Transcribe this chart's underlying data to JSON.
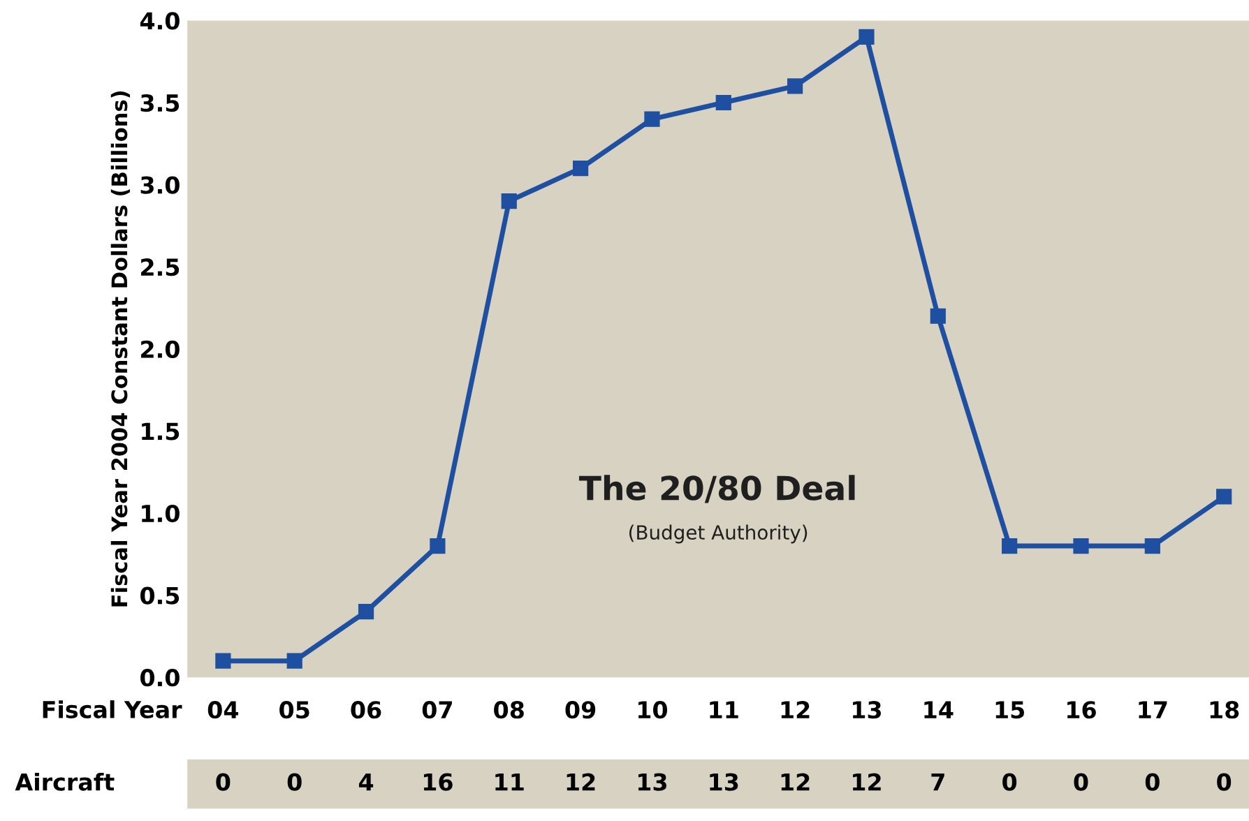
{
  "chart_data": [
    {
      "type": "line",
      "title": "The 20/80 Deal",
      "subtitle": "(Budget Authority)",
      "xlabel": "Fiscal Year",
      "ylabel": "Fiscal Year 2004 Constant Dollars (Billions)",
      "categories": [
        "04",
        "05",
        "06",
        "07",
        "08",
        "09",
        "10",
        "11",
        "12",
        "13",
        "14",
        "15",
        "16",
        "17",
        "18"
      ],
      "series": [
        {
          "color": "#1f4fa0",
          "values": [
            0.1,
            0.1,
            0.4,
            0.8,
            2.9,
            3.1,
            3.4,
            3.5,
            3.6,
            3.9,
            2.2,
            0.8,
            0.8,
            0.8,
            1.1
          ]
        }
      ],
      "ylim": [
        0,
        4.0
      ],
      "yticks": [
        {
          "value": 0,
          "label": "0.0"
        },
        {
          "value": 0.5,
          "label": "0.5"
        },
        {
          "value": 1,
          "label": "1.0"
        },
        {
          "value": 1.5,
          "label": "1.5"
        },
        {
          "value": 2,
          "label": "2.0"
        },
        {
          "value": 2.5,
          "label": "2.5"
        },
        {
          "value": 3,
          "label": "3.0"
        },
        {
          "value": 3.5,
          "label": "3.5"
        },
        {
          "value": 4,
          "label": "4.0"
        }
      ],
      "grid": false,
      "marker": "square",
      "line_style": "solid"
    },
    {
      "type": "other",
      "categories": [
        null,
        null,
        null,
        null,
        null,
        null,
        null,
        null,
        null,
        null,
        null,
        null,
        null,
        null,
        null
      ],
      "data_labels": true,
      "series": [
        {
          "name": "Aircraft",
          "values": [
            0,
            0,
            4,
            16,
            11,
            12,
            13,
            13,
            12,
            12,
            7,
            0,
            0,
            0,
            0
          ]
        }
      ]
    }
  ]
}
